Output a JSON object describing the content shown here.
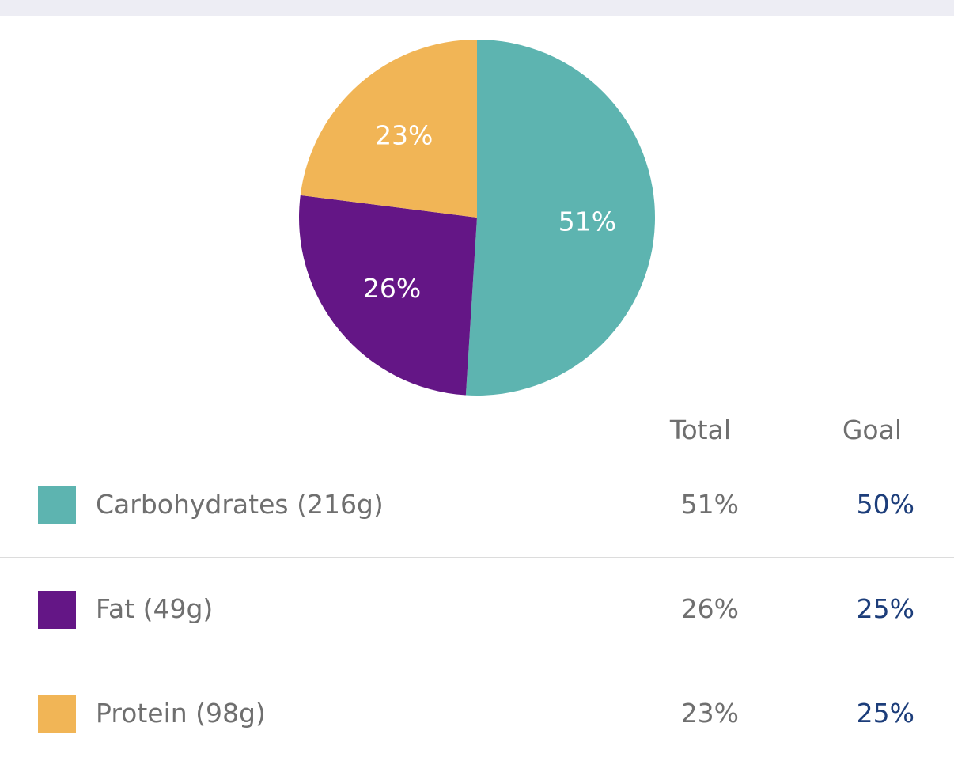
{
  "chart_data": {
    "type": "pie",
    "slices": [
      {
        "name": "Carbohydrates (216g)",
        "value": 51,
        "label": "51%",
        "color": "#5db4b0"
      },
      {
        "name": "Fat (49g)",
        "value": 26,
        "label": "26%",
        "color": "#641686"
      },
      {
        "name": "Protein (98g)",
        "value": 23,
        "label": "23%",
        "color": "#f1b556"
      }
    ]
  },
  "table": {
    "headers": {
      "total": "Total",
      "goal": "Goal"
    },
    "rows": [
      {
        "label": "Carbohydrates (216g)",
        "total": "51%",
        "goal": "50%",
        "color": "#5db4b0"
      },
      {
        "label": "Fat (49g)",
        "total": "26%",
        "goal": "25%",
        "color": "#641686"
      },
      {
        "label": "Protein (98g)",
        "total": "23%",
        "goal": "25%",
        "color": "#f1b556"
      }
    ]
  },
  "colors": {
    "top_band": "#ededf4",
    "text_gray": "#6f6f6f",
    "goal_blue": "#1c3d7a",
    "divider": "#dcdcdc"
  }
}
